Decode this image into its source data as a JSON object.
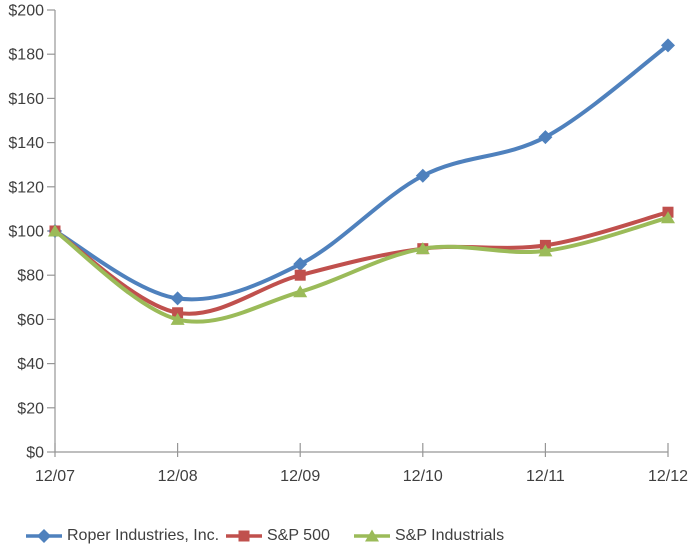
{
  "chart_data": {
    "type": "line",
    "x_categories": [
      "12/07",
      "12/08",
      "12/09",
      "12/10",
      "12/11",
      "12/12"
    ],
    "y_tick_values": [
      0,
      20,
      40,
      60,
      80,
      100,
      120,
      140,
      160,
      180,
      200
    ],
    "y_tick_labels": [
      "$0",
      "$20",
      "$40",
      "$60",
      "$80",
      "$100",
      "$120",
      "$140",
      "$160",
      "$180",
      "$200"
    ],
    "ylim": [
      0,
      200
    ],
    "grid": false,
    "smooth_lines": true,
    "legend_position": "bottom",
    "colors": {
      "axis": "#969696",
      "text": "#3f3f3f",
      "background": "#ffffff"
    },
    "series": [
      {
        "name": "Roper Industries, Inc.",
        "color": "#4F81BD",
        "marker": "diamond",
        "values": [
          100,
          69.5,
          85,
          125,
          142.5,
          184
        ]
      },
      {
        "name": "S&P 500",
        "color": "#C0504D",
        "marker": "square",
        "values": [
          100,
          63,
          80,
          92,
          93.5,
          108.5
        ]
      },
      {
        "name": "S&P Industrials",
        "color": "#9BBB59",
        "marker": "triangle",
        "values": [
          100,
          60,
          72.5,
          92,
          91,
          106
        ]
      }
    ]
  }
}
